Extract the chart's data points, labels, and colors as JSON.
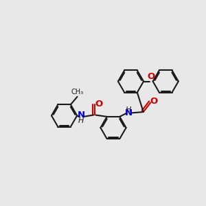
{
  "bg_color": "#e8e8e8",
  "bond_color": "#1a1a1a",
  "N_color": "#0000cd",
  "O_color": "#cc0000",
  "lw": 1.5,
  "dbo": 0.055,
  "r": 0.62,
  "figsize": [
    3.0,
    3.0
  ],
  "dpi": 100,
  "xlim": [
    0,
    10
  ],
  "ylim": [
    0,
    10
  ],
  "font_size": 8.5
}
